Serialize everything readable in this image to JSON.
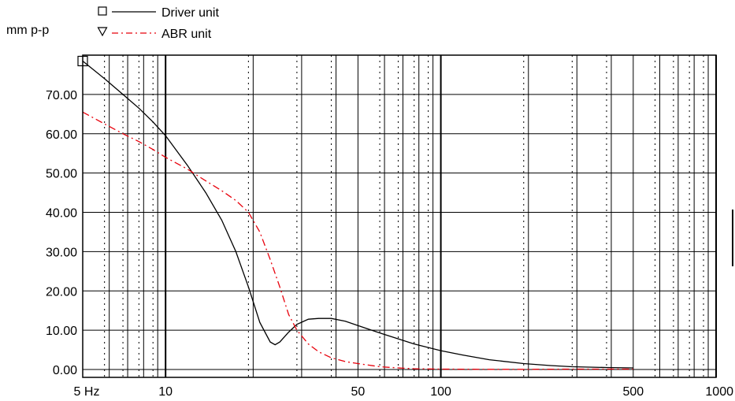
{
  "chart_data": {
    "type": "line",
    "title": "",
    "ylabel": "mm p-p",
    "xlabel": "",
    "x_scale": "log",
    "xlim": [
      5,
      1000
    ],
    "ylim": [
      -2,
      80
    ],
    "grid": true,
    "legend_position": "top-left",
    "x_tick_labels": [
      {
        "value": 5,
        "label": "5 Hz"
      },
      {
        "value": 10,
        "label": "10"
      },
      {
        "value": 50,
        "label": "50"
      },
      {
        "value": 100,
        "label": "100"
      },
      {
        "value": 500,
        "label": "500"
      },
      {
        "value": 1000,
        "label": "1000"
      }
    ],
    "y_tick_labels": [
      {
        "value": 0,
        "label": "0.00"
      },
      {
        "value": 10,
        "label": "10.00"
      },
      {
        "value": 20,
        "label": "20.00"
      },
      {
        "value": 30,
        "label": "30.00"
      },
      {
        "value": 40,
        "label": "40.00"
      },
      {
        "value": 50,
        "label": "50.00"
      },
      {
        "value": 60,
        "label": "60.00"
      },
      {
        "value": 70,
        "label": "70.00"
      }
    ],
    "series": [
      {
        "name": "Driver unit",
        "color": "#000000",
        "style": "solid",
        "marker": "square",
        "x": [
          5,
          6,
          7,
          8,
          9,
          10,
          12,
          14,
          16,
          18,
          20,
          22,
          24,
          25,
          26,
          28,
          30,
          33,
          36,
          40,
          45,
          50,
          60,
          70,
          80,
          100,
          120,
          150,
          200,
          250,
          300,
          400,
          500
        ],
        "y": [
          78.5,
          74,
          70,
          66.5,
          63,
          59.5,
          52,
          45,
          38,
          30,
          21,
          12,
          7,
          6.3,
          7,
          9.5,
          11.5,
          12.8,
          13,
          13,
          12.3,
          11.2,
          9.3,
          7.8,
          6.5,
          4.8,
          3.7,
          2.5,
          1.5,
          1.0,
          0.7,
          0.5,
          0.4
        ]
      },
      {
        "name": "ABR unit",
        "color": "#e8000b",
        "style": "dashed",
        "marker": "triangle",
        "x": [
          5,
          6,
          7,
          8,
          9,
          10,
          12,
          14,
          16,
          18,
          20,
          22,
          24,
          26,
          28,
          30,
          33,
          36,
          40,
          45,
          50,
          60,
          70,
          80,
          100,
          150,
          200,
          300,
          500
        ],
        "y": [
          65.5,
          62.5,
          60,
          58,
          56,
          54,
          51,
          48,
          45.5,
          43,
          40,
          35,
          28,
          21,
          14,
          10,
          6.5,
          4.5,
          3,
          2,
          1.5,
          0.7,
          0.4,
          0.2,
          0.1,
          0.05,
          0.05,
          0.1,
          0.1
        ]
      }
    ]
  }
}
